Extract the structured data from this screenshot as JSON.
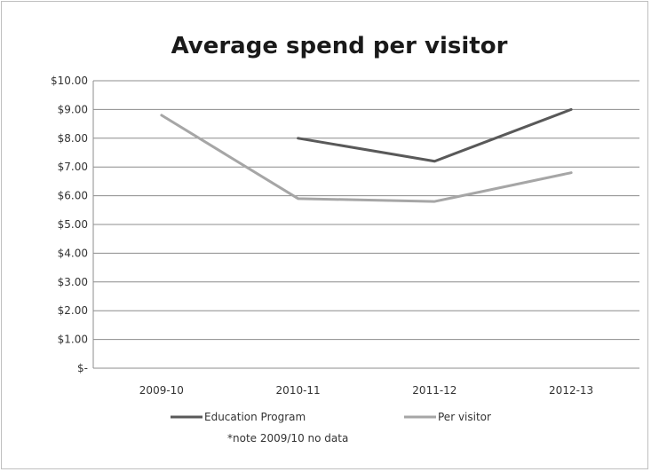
{
  "chart_data": {
    "type": "line",
    "title": "Average spend per visitor",
    "xlabel": "",
    "ylabel": "",
    "categories": [
      "2009-10",
      "2010-11",
      "2011-12",
      "2012-13"
    ],
    "y_tick_labels": [
      "$-",
      "$1.00",
      "$2.00",
      "$3.00",
      "$4.00",
      "$5.00",
      "$6.00",
      "$7.00",
      "$8.00",
      "$9.00",
      "$10.00"
    ],
    "ylim": [
      0,
      10
    ],
    "grid": "horizontal",
    "legend_position": "bottom",
    "series": [
      {
        "name": "Education Program",
        "values": [
          null,
          8.0,
          7.2,
          9.0
        ],
        "color": "#595959"
      },
      {
        "name": "Per visitor",
        "values": [
          8.8,
          5.9,
          5.8,
          6.8
        ],
        "color": "#a6a6a6"
      }
    ],
    "annotation": "*note 2009/10 no data"
  }
}
